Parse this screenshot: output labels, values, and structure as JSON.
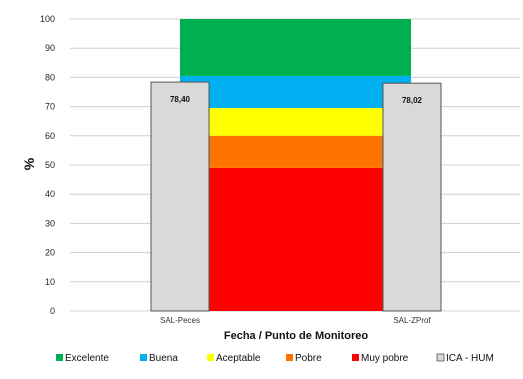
{
  "chart_data": {
    "type": "bar",
    "xlabel": "Fecha / Punto de Monitoreo",
    "ylabel": "%",
    "ylim": [
      0,
      100
    ],
    "yticks": [
      0,
      10,
      20,
      30,
      40,
      50,
      60,
      70,
      80,
      90,
      100
    ],
    "grid": true,
    "legend_position": "bottom",
    "categories": [
      "SAL-Peces",
      "SAL-ZProf"
    ],
    "bands": [
      {
        "name": "Muy pobre",
        "from": 0,
        "to": 49,
        "color": "#ff0000"
      },
      {
        "name": "Pobre",
        "from": 49,
        "to": 60,
        "color": "#ff7400"
      },
      {
        "name": "Aceptable",
        "from": 60,
        "to": 69.5,
        "color": "#ffff00"
      },
      {
        "name": "Buena",
        "from": 69.5,
        "to": 80.5,
        "color": "#00b0f0"
      },
      {
        "name": "Excelente",
        "from": 80.5,
        "to": 100,
        "color": "#00b050"
      }
    ],
    "series": [
      {
        "name": "ICA - HUM",
        "values": [
          78.4,
          78.02
        ],
        "labels": [
          "78,40",
          "78,02"
        ],
        "color": "#d9d9d9"
      }
    ],
    "legend": [
      "Excelente",
      "Buena",
      "Aceptable",
      "Pobre",
      "Muy pobre",
      "ICA - HUM"
    ]
  }
}
